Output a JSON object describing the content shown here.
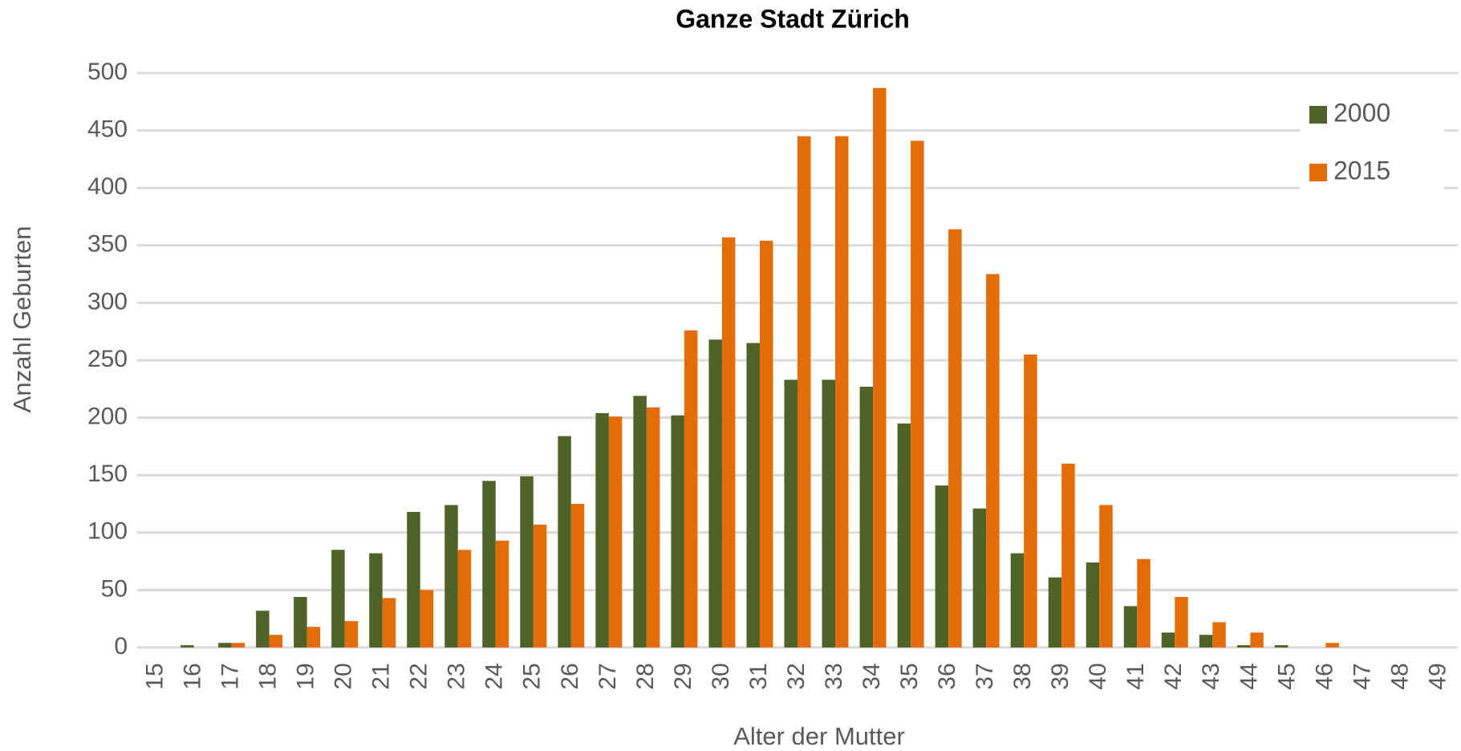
{
  "chart_data": {
    "type": "bar",
    "title": "Ganze Stadt Zürich",
    "xlabel": "Alter der Mutter",
    "ylabel": "Anzahl Geburten",
    "categories": [
      "15",
      "16",
      "17",
      "18",
      "19",
      "20",
      "21",
      "22",
      "23",
      "24",
      "25",
      "26",
      "27",
      "28",
      "29",
      "30",
      "31",
      "32",
      "33",
      "34",
      "35",
      "36",
      "37",
      "38",
      "39",
      "40",
      "41",
      "42",
      "43",
      "44",
      "45",
      "46",
      "47",
      "48",
      "49"
    ],
    "series": [
      {
        "name": "2000",
        "color": "#4f6228",
        "values": [
          0,
          2,
          4,
          32,
          44,
          85,
          82,
          118,
          124,
          145,
          149,
          184,
          204,
          219,
          202,
          268,
          265,
          233,
          233,
          227,
          195,
          141,
          121,
          82,
          61,
          74,
          36,
          13,
          11,
          2,
          2,
          0,
          0,
          0,
          0
        ]
      },
      {
        "name": "2015",
        "color": "#e36c09",
        "values": [
          0,
          0,
          4,
          11,
          18,
          23,
          43,
          50,
          85,
          93,
          107,
          125,
          201,
          209,
          276,
          357,
          354,
          445,
          445,
          487,
          441,
          364,
          325,
          255,
          160,
          124,
          77,
          44,
          22,
          13,
          0,
          4,
          0,
          0,
          0
        ]
      }
    ],
    "ylim": [
      0,
      500
    ],
    "yticks": [
      0,
      50,
      100,
      150,
      200,
      250,
      300,
      350,
      400,
      450,
      500
    ],
    "grid": true,
    "legend": "upper right"
  }
}
